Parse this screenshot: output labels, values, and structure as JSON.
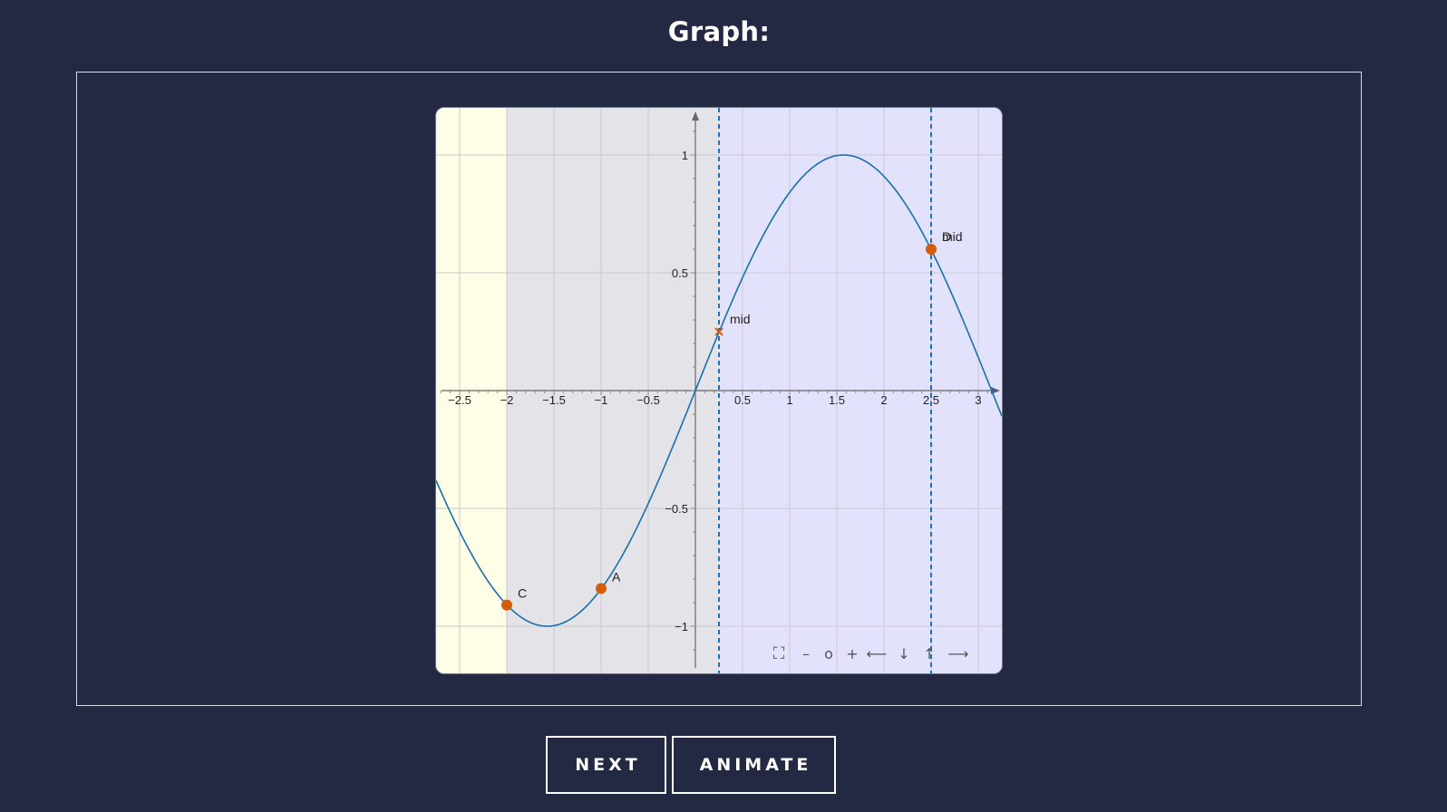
{
  "page": {
    "title": "Graph:"
  },
  "buttons": {
    "next_label": "NEXT",
    "animate_label": "ANIMATE"
  },
  "graph_controls": [
    {
      "name": "fullscreen-icon",
      "glyph": "⛶"
    },
    {
      "name": "zoom-out-icon",
      "glyph": "–"
    },
    {
      "name": "zoom-reset-icon",
      "glyph": "o"
    },
    {
      "name": "zoom-in-icon",
      "glyph": "+"
    },
    {
      "name": "pan-left-icon",
      "glyph": "⟵"
    },
    {
      "name": "pan-down-icon",
      "glyph": "↓"
    },
    {
      "name": "pan-up-icon",
      "glyph": "↑"
    },
    {
      "name": "pan-right-icon",
      "glyph": "⟶"
    }
  ],
  "chart_data": {
    "type": "line",
    "function": "sin(x)",
    "xlim": [
      -2.75,
      3.25
    ],
    "ylim": [
      -1.2,
      1.2
    ],
    "grid": true,
    "x_ticks": [
      -2.5,
      -2,
      -1.5,
      -1,
      -0.5,
      0.5,
      1,
      1.5,
      2,
      2.5,
      3
    ],
    "x_tick_labels": [
      "−2.5",
      "−2",
      "−1.5",
      "−1",
      "−0.5",
      "0.5",
      "1",
      "1.5",
      "2",
      "2.5",
      "3"
    ],
    "y_ticks": [
      -1,
      -0.5,
      0.5,
      1
    ],
    "y_tick_labels": [
      "−1",
      "−0.5",
      "0.5",
      "1"
    ],
    "regions": [
      {
        "x_from": -2.75,
        "x_to": -2,
        "color": "#fefde5"
      },
      {
        "x_from": -2,
        "x_to": 0.25,
        "color": "#e4e4e8"
      },
      {
        "x_from": 0.25,
        "x_to": 3.25,
        "color": "#e2e2fc"
      }
    ],
    "vertical_lines": [
      {
        "x": 0.25,
        "style": "dashed",
        "color": "#1a73b5"
      },
      {
        "x": 2.5,
        "style": "dashed",
        "color": "#1a73b5"
      }
    ],
    "curve_color": "#1a6fad",
    "points": [
      {
        "label": "C",
        "x": -2,
        "y": -0.91,
        "marker": "dot",
        "color": "#d25e0c"
      },
      {
        "label": "A",
        "x": -1,
        "y": -0.84,
        "marker": "dot",
        "color": "#d25e0c"
      },
      {
        "label": "D",
        "x": 2.5,
        "y": 0.6,
        "marker": "dot",
        "color": "#d25e0c"
      },
      {
        "label": "mid",
        "x": 2.5,
        "y": 0.6,
        "marker": "none",
        "color": "#d25e0c"
      },
      {
        "label": "mid",
        "x": 0.25,
        "y": 0.25,
        "marker": "cross",
        "color": "#d25e0c"
      }
    ]
  }
}
